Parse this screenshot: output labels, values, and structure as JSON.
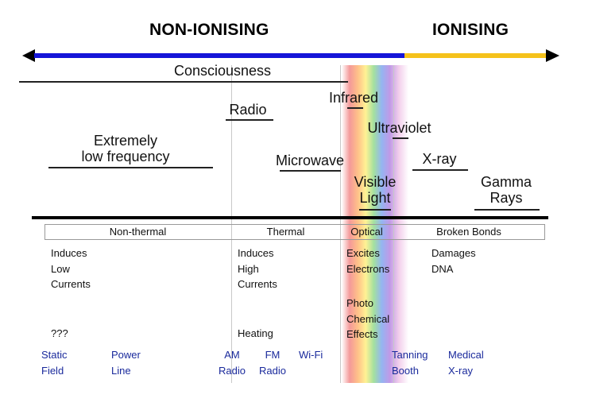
{
  "headers": {
    "non_ionising": "NON-IONISING",
    "ionising": "IONISING"
  },
  "colors": {
    "non_ionising_bar": "#1515d8",
    "ionising_bar": "#f5c21b"
  },
  "bands": {
    "consciousness": "Consciousness",
    "radio": "Radio",
    "infrared": "Infrared",
    "ultraviolet": "Ultraviolet",
    "elf": "Extremely\nlow frequency",
    "microwave": "Microwave",
    "xray": "X-ray",
    "visible": "Visible\nLight",
    "gamma": "Gamma\nRays"
  },
  "categories": {
    "non_thermal": "Non-thermal",
    "thermal": "Thermal",
    "optical": "Optical",
    "broken_bonds": "Broken Bonds"
  },
  "effects": {
    "induces_low": "Induces\nLow\nCurrents",
    "unknown": "???",
    "induces_high": "Induces\nHigh\nCurrents",
    "heating": "Heating",
    "excites": "Excites\nElectrons",
    "photochem": "Photo\nChemical\nEffects",
    "damages": "Damages\nDNA"
  },
  "examples": {
    "static_field": "Static\nField",
    "power_line": "Power\nLine",
    "am_radio": "AM\nRadio",
    "fm_radio": "FM\nRadio",
    "wifi": "Wi-Fi",
    "tanning_booth": "Tanning\nBooth",
    "medical_xray": "Medical\nX-ray"
  }
}
